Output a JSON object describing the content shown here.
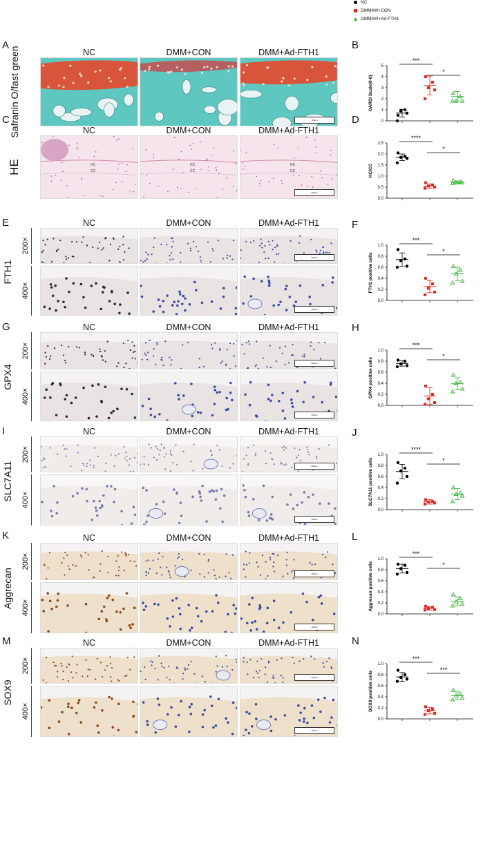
{
  "legend": [
    {
      "name": "NC",
      "color": "#000000",
      "marker": "circle"
    },
    {
      "name": "DMM4W+CON",
      "color": "#e8251f",
      "marker": "square"
    },
    {
      "name": "DMM4W+Ad-FTH1",
      "color": "#2bb52b",
      "marker": "triangle"
    }
  ],
  "columns": [
    "NC",
    "DMM+CON",
    "DMM+Ad-FTH1"
  ],
  "magnifications": [
    "200×",
    "400×"
  ],
  "image_rows": [
    {
      "letter": "A",
      "stain": "Safranin O/fast green",
      "columns": [
        "NC",
        "DMM+CON",
        "DMM+Ad-FTH1"
      ],
      "scale": "100μm",
      "style": "safranin",
      "zoom_levels": 1
    },
    {
      "letter": "C",
      "stain": "HE",
      "columns": [
        "NC",
        "DMM+CON",
        "DMM+Ad-FTH1"
      ],
      "scale": "200μm",
      "style": "he",
      "zoom_levels": 1,
      "layers": [
        "HC",
        "CC"
      ]
    },
    {
      "letter": "E",
      "stain": "FTH1",
      "columns": [
        "NC",
        "DMM+CON",
        "DMM+Ad-FTH1"
      ],
      "scales": [
        "200μm",
        "100μm"
      ],
      "style": "ihc",
      "zoom_levels": 2
    },
    {
      "letter": "G",
      "stain": "GPX4",
      "columns": [
        "NC",
        "DMM+CON",
        "DMM+Ad-FTH1"
      ],
      "scales": [
        "200μm",
        "100μm"
      ],
      "style": "ihc",
      "zoom_levels": 2
    },
    {
      "letter": "I",
      "stain": "SLC7A11",
      "columns": [
        "NC",
        "DMM+CON",
        "DMM+Ad-FTH1"
      ],
      "scales": [
        "200μm",
        "100μm"
      ],
      "style": "ihc-light",
      "zoom_levels": 2
    },
    {
      "letter": "K",
      "stain": "Aggrecan",
      "columns": [
        "NC",
        "DMM+CON",
        "DMM+Ad-FTH1"
      ],
      "scales": [
        "200μm",
        "100μm"
      ],
      "style": "ihc-brown",
      "zoom_levels": 2
    },
    {
      "letter": "M",
      "stain": "SOX9",
      "columns": [
        "NC",
        "DMM+CON",
        "DMM+Ad-FTH1"
      ],
      "scales": [
        "200μm",
        "100μm"
      ],
      "style": "ihc-brown",
      "zoom_levels": 2
    }
  ],
  "chart_data": [
    {
      "letter": "B",
      "type": "scatter",
      "ylabel": "OARSI Scale(0-6)",
      "ylim": [
        0,
        5
      ],
      "yticks": [
        0,
        1,
        2,
        3,
        4,
        5
      ],
      "series": [
        {
          "name": "NC",
          "color": "#000000",
          "marker": "circle",
          "values": [
            0.5,
            1.0,
            0.9,
            0.7,
            0.0
          ],
          "mean": 0.7,
          "sd": 0.35
        },
        {
          "name": "DMM4W+CON",
          "color": "#e8251f",
          "marker": "square",
          "values": [
            4.0,
            3.5,
            3.0,
            2.8,
            2.0
          ],
          "mean": 3.2,
          "sd": 0.85
        },
        {
          "name": "DMM4W+Ad-FTH1",
          "color": "#2bb52b",
          "marker": "triangle",
          "values": [
            2.5,
            2.2,
            1.8,
            1.8,
            1.8
          ],
          "mean": 2.2,
          "sd": 0.45
        }
      ],
      "significance": [
        {
          "pair": [
            0,
            1
          ],
          "label": "***"
        },
        {
          "pair": [
            1,
            2
          ],
          "label": "*"
        }
      ]
    },
    {
      "letter": "D",
      "type": "scatter",
      "ylabel": "HC/CC",
      "ylim": [
        0,
        2.5
      ],
      "yticks": [
        0.0,
        0.5,
        1.0,
        1.5,
        2.0,
        2.5
      ],
      "series": [
        {
          "name": "NC",
          "color": "#000000",
          "marker": "circle",
          "values": [
            2.05,
            1.9,
            1.85,
            1.8,
            1.6
          ],
          "mean": 1.85,
          "sd": 0.15
        },
        {
          "name": "DMM4W+CON",
          "color": "#e8251f",
          "marker": "square",
          "values": [
            0.7,
            0.6,
            0.55,
            0.5,
            0.45
          ],
          "mean": 0.55,
          "sd": 0.1
        },
        {
          "name": "DMM4W+Ad-FTH1",
          "color": "#2bb52b",
          "marker": "triangle",
          "values": [
            0.8,
            0.75,
            0.7,
            0.7,
            0.68
          ],
          "mean": 0.72,
          "sd": 0.06
        }
      ],
      "significance": [
        {
          "pair": [
            0,
            1
          ],
          "label": "****"
        },
        {
          "pair": [
            1,
            2
          ],
          "label": "*"
        }
      ]
    },
    {
      "letter": "F",
      "type": "scatter",
      "ylabel": "FTH1 positive cells",
      "ylim": [
        0,
        1.0
      ],
      "yticks": [
        0.0,
        0.2,
        0.4,
        0.6,
        0.8,
        1.0
      ],
      "series": [
        {
          "name": "NC",
          "color": "#000000",
          "marker": "circle",
          "values": [
            0.92,
            0.75,
            0.72,
            0.62,
            0.6
          ],
          "mean": 0.74,
          "sd": 0.12
        },
        {
          "name": "DMM4W+CON",
          "color": "#e8251f",
          "marker": "square",
          "values": [
            0.4,
            0.3,
            0.22,
            0.15,
            0.1
          ],
          "mean": 0.25,
          "sd": 0.11
        },
        {
          "name": "DMM4W+Ad-FTH1",
          "color": "#2bb52b",
          "marker": "triangle",
          "values": [
            0.62,
            0.55,
            0.48,
            0.35,
            0.32
          ],
          "mean": 0.48,
          "sd": 0.12
        }
      ],
      "significance": [
        {
          "pair": [
            0,
            1
          ],
          "label": "***"
        },
        {
          "pair": [
            1,
            2
          ],
          "label": "*"
        }
      ]
    },
    {
      "letter": "H",
      "type": "scatter",
      "ylabel": "GPX4 positive cells",
      "ylim": [
        0,
        1.0
      ],
      "yticks": [
        0.0,
        0.2,
        0.4,
        0.6,
        0.8,
        1.0
      ],
      "series": [
        {
          "name": "NC",
          "color": "#000000",
          "marker": "circle",
          "values": [
            0.82,
            0.8,
            0.75,
            0.72,
            0.7
          ],
          "mean": 0.76,
          "sd": 0.05
        },
        {
          "name": "DMM4W+CON",
          "color": "#e8251f",
          "marker": "square",
          "values": [
            0.35,
            0.2,
            0.12,
            0.05,
            0.02
          ],
          "mean": 0.17,
          "sd": 0.15
        },
        {
          "name": "DMM4W+Ad-FTH1",
          "color": "#2bb52b",
          "marker": "triangle",
          "values": [
            0.55,
            0.42,
            0.4,
            0.3,
            0.25
          ],
          "mean": 0.39,
          "sd": 0.11
        }
      ],
      "significance": [
        {
          "pair": [
            0,
            1
          ],
          "label": "***"
        },
        {
          "pair": [
            1,
            2
          ],
          "label": "*"
        }
      ]
    },
    {
      "letter": "J",
      "type": "scatter",
      "ylabel": "SLC7A11 positive cells",
      "ylim": [
        0,
        1.0
      ],
      "yticks": [
        0.0,
        0.2,
        0.4,
        0.6,
        0.8,
        1.0
      ],
      "series": [
        {
          "name": "NC",
          "color": "#000000",
          "marker": "circle",
          "values": [
            0.85,
            0.75,
            0.7,
            0.6,
            0.48
          ],
          "mean": 0.69,
          "sd": 0.13
        },
        {
          "name": "DMM4W+CON",
          "color": "#e8251f",
          "marker": "square",
          "values": [
            0.18,
            0.15,
            0.14,
            0.12,
            0.1
          ],
          "mean": 0.14,
          "sd": 0.04
        },
        {
          "name": "DMM4W+Ad-FTH1",
          "color": "#2bb52b",
          "marker": "triangle",
          "values": [
            0.4,
            0.3,
            0.28,
            0.25,
            0.15
          ],
          "mean": 0.28,
          "sd": 0.1
        }
      ],
      "significance": [
        {
          "pair": [
            0,
            1
          ],
          "label": "****"
        },
        {
          "pair": [
            1,
            2
          ],
          "label": "*"
        }
      ]
    },
    {
      "letter": "L",
      "type": "scatter",
      "ylabel": "Aggrecan positive cells",
      "ylim": [
        0,
        1.0
      ],
      "yticks": [
        0.0,
        0.2,
        0.4,
        0.6,
        0.8,
        1.0
      ],
      "series": [
        {
          "name": "NC",
          "color": "#000000",
          "marker": "circle",
          "values": [
            0.9,
            0.88,
            0.82,
            0.75,
            0.72
          ],
          "mean": 0.82,
          "sd": 0.08
        },
        {
          "name": "DMM4W+CON",
          "color": "#e8251f",
          "marker": "square",
          "values": [
            0.14,
            0.12,
            0.1,
            0.08,
            0.07
          ],
          "mean": 0.1,
          "sd": 0.03
        },
        {
          "name": "DMM4W+Ad-FTH1",
          "color": "#2bb52b",
          "marker": "triangle",
          "values": [
            0.35,
            0.28,
            0.22,
            0.18,
            0.15
          ],
          "mean": 0.23,
          "sd": 0.08
        }
      ],
      "significance": [
        {
          "pair": [
            0,
            1
          ],
          "label": "***"
        },
        {
          "pair": [
            1,
            2
          ],
          "label": "*"
        }
      ]
    },
    {
      "letter": "N",
      "type": "scatter",
      "ylabel": "SOX9 positive cells",
      "ylim": [
        0,
        1.0
      ],
      "yticks": [
        0.0,
        0.2,
        0.4,
        0.6,
        0.8,
        1.0
      ],
      "series": [
        {
          "name": "NC",
          "color": "#000000",
          "marker": "circle",
          "values": [
            0.88,
            0.8,
            0.75,
            0.72,
            0.68
          ],
          "mean": 0.76,
          "sd": 0.08
        },
        {
          "name": "DMM4W+CON",
          "color": "#e8251f",
          "marker": "square",
          "values": [
            0.22,
            0.18,
            0.15,
            0.1,
            0.08
          ],
          "mean": 0.15,
          "sd": 0.06
        },
        {
          "name": "DMM4W+Ad-FTH1",
          "color": "#2bb52b",
          "marker": "triangle",
          "values": [
            0.52,
            0.45,
            0.42,
            0.38,
            0.35
          ],
          "mean": 0.42,
          "sd": 0.07
        }
      ],
      "significance": [
        {
          "pair": [
            0,
            1
          ],
          "label": "***"
        },
        {
          "pair": [
            1,
            2
          ],
          "label": "***"
        }
      ]
    }
  ]
}
